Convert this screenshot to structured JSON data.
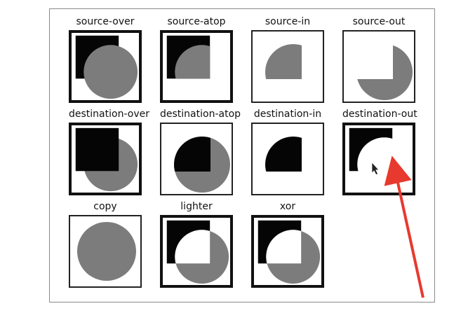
{
  "operations": [
    {
      "label": "source-over"
    },
    {
      "label": "source-atop"
    },
    {
      "label": "source-in"
    },
    {
      "label": "source-out"
    },
    {
      "label": "destination-over"
    },
    {
      "label": "destination-atop"
    },
    {
      "label": "destination-in"
    },
    {
      "label": "destination-out"
    },
    {
      "label": "copy"
    },
    {
      "label": "lighter"
    },
    {
      "label": "xor"
    }
  ],
  "colors": {
    "source_gray": "#7c7c7c",
    "destination_black": "#050505",
    "annotation_arrow": "#e8392f",
    "frame_border": "#8a8a8a"
  }
}
